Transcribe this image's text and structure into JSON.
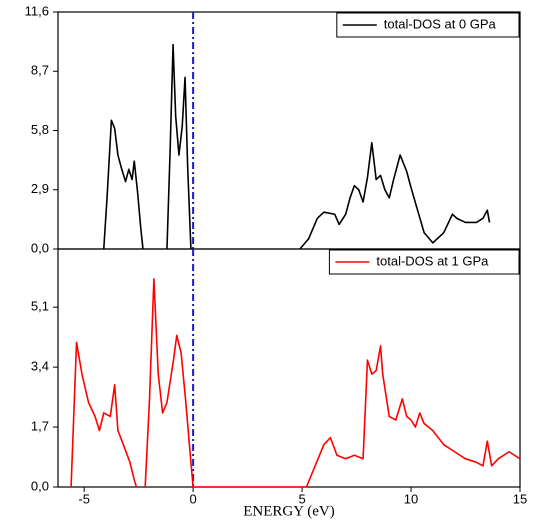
{
  "chart_data": [
    {
      "type": "line",
      "x": [
        -4.1,
        -3.95,
        -3.75,
        -3.6,
        -3.45,
        -3.3,
        -3.1,
        -2.95,
        -2.8,
        -2.7,
        -2.55,
        -2.4,
        -2.3,
        -1.75,
        -1.2,
        -1.05,
        -0.92,
        -0.8,
        -0.65,
        -0.5,
        -0.37,
        -0.25,
        -0.1,
        2.4,
        4.9,
        5.3,
        5.7,
        6.0,
        6.5,
        6.7,
        7.0,
        7.2,
        7.4,
        7.6,
        7.8,
        8.0,
        8.2,
        8.4,
        8.6,
        8.8,
        9.0,
        9.2,
        9.5,
        9.8,
        10.0,
        10.3,
        10.6,
        11.0,
        11.5,
        11.9,
        12.1,
        12.5,
        13.0,
        13.3,
        13.5,
        13.6
      ],
      "series": [
        {
          "name": "total-DOS at 0 GPa",
          "color": "#000000",
          "values": [
            0,
            2.5,
            6.3,
            5.9,
            4.6,
            4.0,
            3.3,
            3.9,
            3.4,
            4.3,
            2.8,
            1.0,
            0,
            null,
            0,
            5.0,
            10.0,
            6.5,
            4.6,
            6.0,
            8.4,
            4.0,
            0,
            null,
            0,
            0.5,
            1.5,
            1.8,
            1.7,
            1.2,
            1.7,
            2.5,
            3.1,
            2.9,
            2.3,
            3.5,
            5.2,
            3.4,
            3.6,
            2.9,
            2.5,
            3.4,
            4.6,
            3.8,
            3.0,
            1.9,
            0.8,
            0.3,
            0.8,
            1.7,
            1.5,
            1.3,
            1.3,
            1.5,
            1.9,
            1.3
          ]
        }
      ],
      "xlim": [
        -6.2,
        15
      ],
      "ylim": [
        0,
        11.6
      ],
      "yticks": [
        {
          "value": 0,
          "label": "0,0"
        },
        {
          "value": 2.9,
          "label": "2,9"
        },
        {
          "value": 5.8,
          "label": "5,8"
        },
        {
          "value": 8.7,
          "label": "8,7"
        },
        {
          "value": 11.6,
          "label": "11,6"
        }
      ],
      "vline": {
        "x": 0,
        "color": "#1a1ad6"
      },
      "legend": "upper right"
    },
    {
      "type": "line",
      "x": [
        -5.6,
        -5.35,
        -5.1,
        -4.8,
        -4.5,
        -4.3,
        -4.1,
        -3.8,
        -3.6,
        -3.45,
        -3.2,
        -2.9,
        -2.7,
        -2.6,
        -2.4,
        -2.2,
        -2.0,
        -1.8,
        -1.6,
        -1.4,
        -1.2,
        -0.9,
        -0.75,
        -0.55,
        -0.35,
        -0.1,
        0,
        5.2,
        5.6,
        6.0,
        6.3,
        6.6,
        7.0,
        7.4,
        7.8,
        8.0,
        8.2,
        8.4,
        8.6,
        8.7,
        9.0,
        9.3,
        9.6,
        9.8,
        10.0,
        10.2,
        10.4,
        10.6,
        11.0,
        11.5,
        12.0,
        12.5,
        13.0,
        13.3,
        13.5,
        13.7,
        14.0,
        14.5,
        15
      ],
      "series": [
        {
          "name": "total-DOS  at 1 GPa",
          "color": "#ff0000",
          "values": [
            0,
            4.1,
            3.2,
            2.4,
            2.0,
            1.6,
            2.1,
            2.0,
            2.9,
            1.6,
            1.2,
            0.7,
            0.2,
            0,
            null,
            0,
            2.5,
            5.9,
            3.2,
            2.1,
            2.4,
            3.6,
            4.3,
            3.8,
            2.5,
            0.7,
            0,
            0,
            0.6,
            1.2,
            1.4,
            0.9,
            0.8,
            0.9,
            0.8,
            3.6,
            3.2,
            3.3,
            4.0,
            3.2,
            2.0,
            1.9,
            2.5,
            2.0,
            1.9,
            1.7,
            2.1,
            1.8,
            1.6,
            1.2,
            1.0,
            0.8,
            0.7,
            0.6,
            1.3,
            0.6,
            0.8,
            1.0,
            0.8
          ]
        }
      ],
      "xlim": [
        -6.2,
        15
      ],
      "ylim": [
        0,
        6.75
      ],
      "xticks": [
        -5,
        0,
        5,
        10,
        15
      ],
      "yticks": [
        {
          "value": 0,
          "label": "0,0"
        },
        {
          "value": 1.7,
          "label": "1,7"
        },
        {
          "value": 3.4,
          "label": "3,4"
        },
        {
          "value": 5.1,
          "label": "5,1"
        }
      ],
      "xlabel": "ENERGY (eV)",
      "vline": {
        "x": 0,
        "color": "#1a1ad6"
      },
      "legend": "upper right"
    }
  ]
}
